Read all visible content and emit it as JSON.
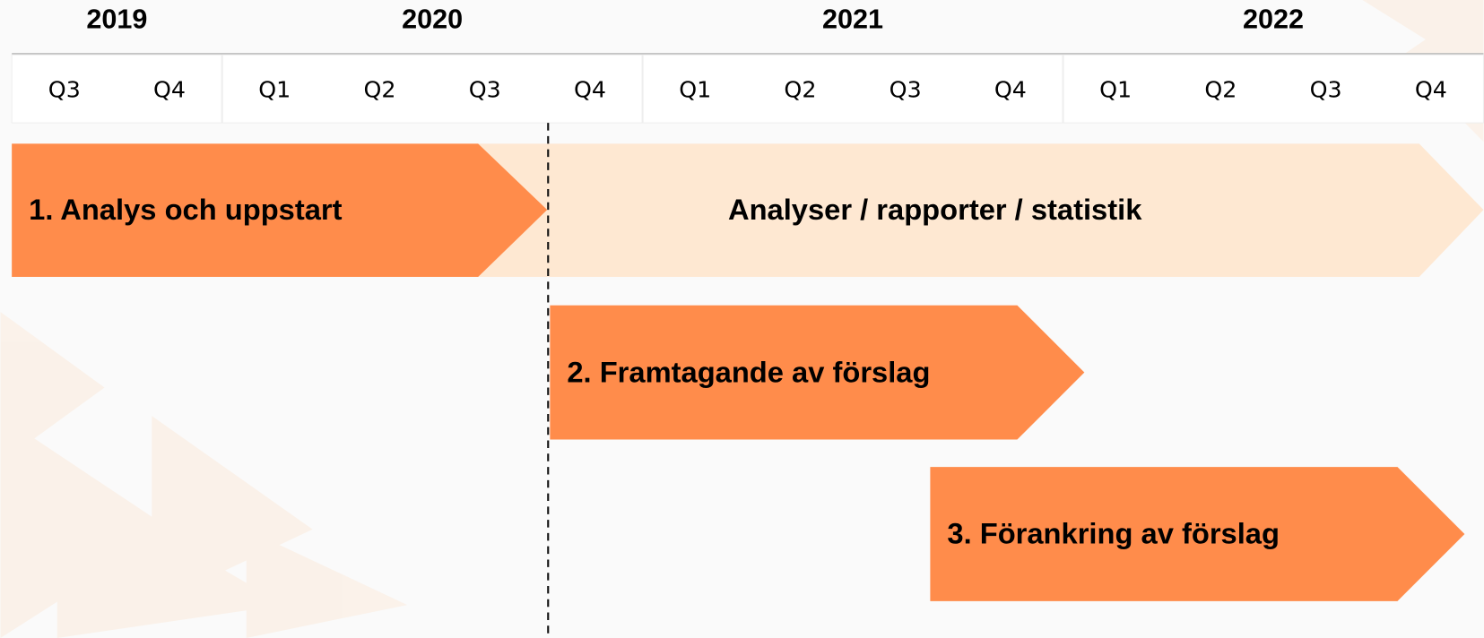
{
  "timeline": {
    "years": [
      {
        "label": "2019",
        "quarters": [
          "Q3",
          "Q4"
        ]
      },
      {
        "label": "2020",
        "quarters": [
          "Q1",
          "Q2",
          "Q3",
          "Q4"
        ]
      },
      {
        "label": "2021",
        "quarters": [
          "Q1",
          "Q2",
          "Q3",
          "Q4"
        ]
      },
      {
        "label": "2022",
        "quarters": [
          "Q1",
          "Q2",
          "Q3",
          "Q4"
        ]
      }
    ],
    "phases": [
      {
        "label": "Analyser / rapporter / statistik"
      },
      {
        "label": "1. Analys och uppstart"
      },
      {
        "label": "2. Framtagande av förslag"
      },
      {
        "label": "3. Förankring av förslag"
      }
    ]
  }
}
